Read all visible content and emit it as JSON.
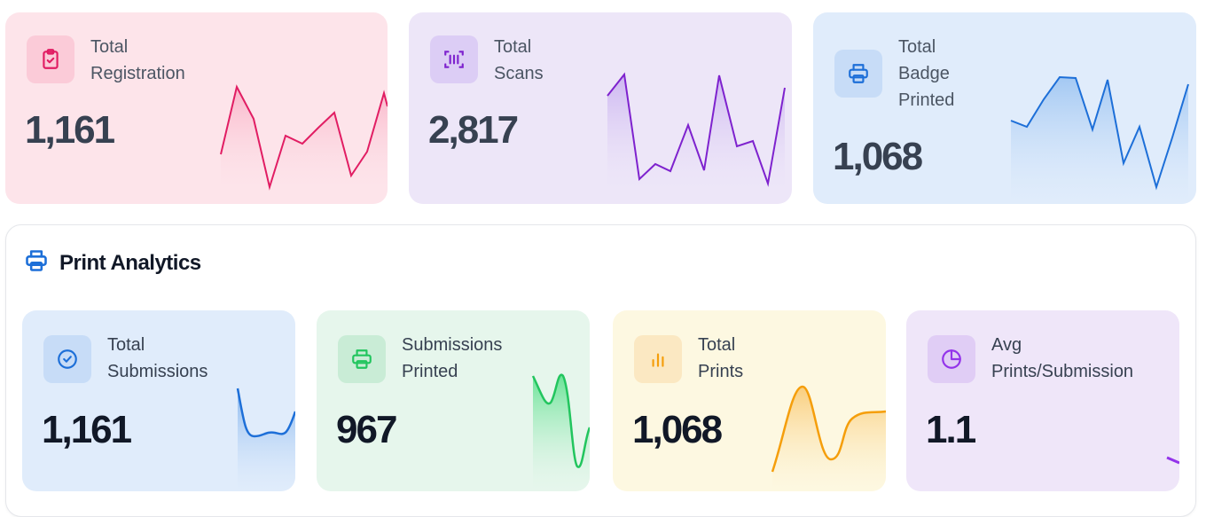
{
  "top_cards": {
    "registration": {
      "label_line1": "Total",
      "label_line2": "Registration",
      "value": "1,161",
      "icon": "clipboard-check-icon",
      "accent": "#e11d63"
    },
    "scans": {
      "label_line1": "Total",
      "label_line2": "Scans",
      "value": "2,817",
      "icon": "barcode-scan-icon",
      "accent": "#7e22ce"
    },
    "badge": {
      "label_line1": "Total",
      "label_line2": "Badge",
      "label_line3": "Printed",
      "value": "1,068",
      "icon": "printer-icon",
      "accent": "#1d6fd8"
    }
  },
  "analytics": {
    "title": "Print Analytics",
    "icon": "printer-icon",
    "cards": {
      "submissions": {
        "label_line1": "Total",
        "label_line2": "Submissions",
        "value": "1,161",
        "icon": "check-circle-icon",
        "accent": "#1d6fd8"
      },
      "printed": {
        "label_line1": "Submissions",
        "label_line2": "Printed",
        "value": "967",
        "icon": "printer-icon",
        "accent": "#22c55e"
      },
      "prints": {
        "label_line1": "Total",
        "label_line2": "Prints",
        "value": "1,068",
        "icon": "bar-chart-icon",
        "accent": "#f59e0b"
      },
      "avg": {
        "label_line1": "Avg",
        "label_line2": "Prints/Submission",
        "value": "1.1",
        "icon": "pie-chart-icon",
        "accent": "#9333ea"
      }
    }
  }
}
